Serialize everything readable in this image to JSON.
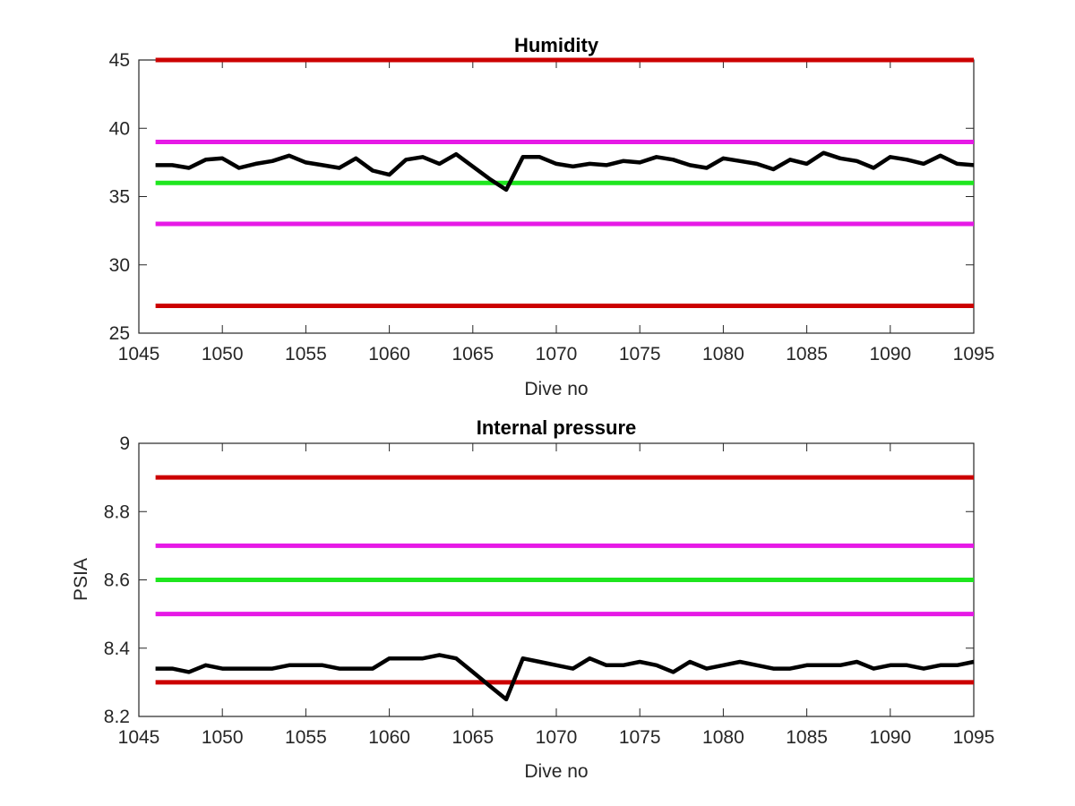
{
  "chart_data": [
    {
      "type": "line",
      "title": "Humidity",
      "xlabel": "Dive no",
      "ylabel": "",
      "xlim": [
        1045,
        1095
      ],
      "ylim": [
        25,
        45
      ],
      "xticks": [
        1045,
        1050,
        1055,
        1060,
        1065,
        1070,
        1075,
        1080,
        1085,
        1090,
        1095
      ],
      "yticks": [
        25,
        30,
        35,
        40,
        45
      ],
      "grid": false,
      "reference_lines": [
        {
          "y": 45,
          "color": "#cc0000"
        },
        {
          "y": 39,
          "color": "#e619e6"
        },
        {
          "y": 36,
          "color": "#1ee61e"
        },
        {
          "y": 33,
          "color": "#e619e6"
        },
        {
          "y": 27,
          "color": "#cc0000"
        }
      ],
      "series": [
        {
          "color": "#000000",
          "x": [
            1046,
            1047,
            1048,
            1049,
            1050,
            1051,
            1052,
            1053,
            1054,
            1055,
            1056,
            1057,
            1058,
            1059,
            1060,
            1061,
            1062,
            1063,
            1064,
            1065,
            1066,
            1067,
            1068,
            1069,
            1070,
            1071,
            1072,
            1073,
            1074,
            1075,
            1076,
            1077,
            1078,
            1079,
            1080,
            1081,
            1082,
            1083,
            1084,
            1085,
            1086,
            1087,
            1088,
            1089,
            1090,
            1091,
            1092,
            1093,
            1094,
            1095
          ],
          "y": [
            37.3,
            37.3,
            37.1,
            37.7,
            37.8,
            37.1,
            37.4,
            37.6,
            38.0,
            37.5,
            37.3,
            37.1,
            37.8,
            36.9,
            36.6,
            37.7,
            37.9,
            37.4,
            38.1,
            37.2,
            36.3,
            35.5,
            37.9,
            37.9,
            37.4,
            37.2,
            37.4,
            37.3,
            37.6,
            37.5,
            37.9,
            37.7,
            37.3,
            37.1,
            37.8,
            37.6,
            37.4,
            37.0,
            37.7,
            37.4,
            38.2,
            37.8,
            37.6,
            37.1,
            37.9,
            37.7,
            37.4,
            38.0,
            37.4,
            37.3
          ]
        }
      ]
    },
    {
      "type": "line",
      "title": "Internal pressure",
      "xlabel": "Dive no",
      "ylabel": "PSIA",
      "xlim": [
        1045,
        1095
      ],
      "ylim": [
        8.2,
        9
      ],
      "xticks": [
        1045,
        1050,
        1055,
        1060,
        1065,
        1070,
        1075,
        1080,
        1085,
        1090,
        1095
      ],
      "yticks": [
        8.2,
        8.4,
        8.6,
        8.8,
        9
      ],
      "grid": false,
      "reference_lines": [
        {
          "y": 8.9,
          "color": "#cc0000"
        },
        {
          "y": 8.7,
          "color": "#e619e6"
        },
        {
          "y": 8.6,
          "color": "#1ee61e"
        },
        {
          "y": 8.5,
          "color": "#e619e6"
        },
        {
          "y": 8.3,
          "color": "#cc0000"
        }
      ],
      "series": [
        {
          "color": "#000000",
          "x": [
            1046,
            1047,
            1048,
            1049,
            1050,
            1051,
            1052,
            1053,
            1054,
            1055,
            1056,
            1057,
            1058,
            1059,
            1060,
            1061,
            1062,
            1063,
            1064,
            1065,
            1066,
            1067,
            1068,
            1069,
            1070,
            1071,
            1072,
            1073,
            1074,
            1075,
            1076,
            1077,
            1078,
            1079,
            1080,
            1081,
            1082,
            1083,
            1084,
            1085,
            1086,
            1087,
            1088,
            1089,
            1090,
            1091,
            1092,
            1093,
            1094,
            1095
          ],
          "y": [
            8.34,
            8.34,
            8.33,
            8.35,
            8.34,
            8.34,
            8.34,
            8.34,
            8.35,
            8.35,
            8.35,
            8.34,
            8.34,
            8.34,
            8.37,
            8.37,
            8.37,
            8.38,
            8.37,
            8.33,
            8.29,
            8.25,
            8.37,
            8.36,
            8.35,
            8.34,
            8.37,
            8.35,
            8.35,
            8.36,
            8.35,
            8.33,
            8.36,
            8.34,
            8.35,
            8.36,
            8.35,
            8.34,
            8.34,
            8.35,
            8.35,
            8.35,
            8.36,
            8.34,
            8.35,
            8.35,
            8.34,
            8.35,
            8.35,
            8.36
          ]
        }
      ]
    }
  ]
}
